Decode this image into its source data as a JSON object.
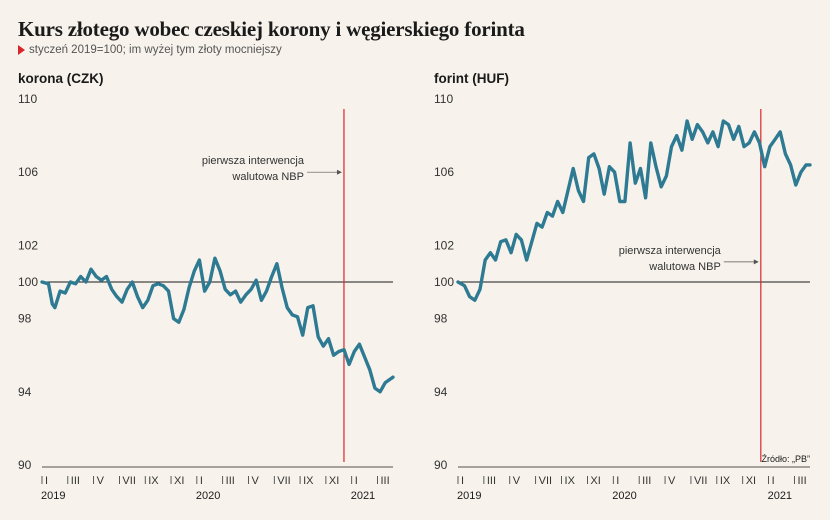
{
  "title": "Kurs złotego wobec czeskiej korony i węgierskiego forinta",
  "subtitle": "styczeń 2019=100; im wyżej tym złoty mocniejszy",
  "source": "Źródło: „PB”",
  "colors": {
    "series": "#2e7a93",
    "intervention_line": "#d9262b",
    "baseline": "#1a1a1a",
    "background": "#f7f3ec"
  },
  "chart_data": [
    {
      "type": "line",
      "title": "korona (CZK)",
      "ylim": [
        90,
        110
      ],
      "yticks": [
        90,
        94,
        98,
        100,
        102,
        106,
        110
      ],
      "baseline": 100,
      "x_range": [
        0,
        27.2
      ],
      "x_unit": "months since January 2019",
      "month_ticks": [
        "I",
        "III",
        "V",
        "VII",
        "IX",
        "XI",
        "I",
        "III",
        "V",
        "VII",
        "IX",
        "XI",
        "I",
        "III"
      ],
      "years": [
        "2019",
        "2020",
        "2021"
      ],
      "intervention": {
        "x": 23.4,
        "label_line1": "pierwsza interwencja",
        "label_line2": "walutowa NBP"
      },
      "series": [
        {
          "x": [
            0,
            0.5,
            0.8,
            1.0,
            1.4,
            1.8,
            2.2,
            2.6,
            3.0,
            3.4,
            3.8,
            4.2,
            4.6,
            5.0,
            5.4,
            5.8,
            6.2,
            6.6,
            7.0,
            7.4,
            7.8,
            8.2,
            8.6,
            9.0,
            9.4,
            9.8,
            10.2,
            10.6,
            11.0,
            11.4,
            11.8,
            12.2,
            12.6,
            13.0,
            13.4,
            13.8,
            14.2,
            14.6,
            15.0,
            15.4,
            15.8,
            16.2,
            16.6,
            17.0,
            17.4,
            17.8,
            18.2,
            18.6,
            19.0,
            19.4,
            19.8,
            20.2,
            20.6,
            21.0,
            21.4,
            21.8,
            22.2,
            22.6,
            23.0,
            23.4,
            23.8,
            24.2,
            24.6,
            25.0,
            25.4,
            25.8,
            26.2,
            26.6,
            27.0,
            27.2
          ],
          "y": [
            100.0,
            99.9,
            98.8,
            98.6,
            99.5,
            99.4,
            100.0,
            99.9,
            100.3,
            100.0,
            100.7,
            100.3,
            100.1,
            100.3,
            99.6,
            99.2,
            98.9,
            99.6,
            100.0,
            99.2,
            98.6,
            99.0,
            99.8,
            99.9,
            99.8,
            99.5,
            98.0,
            97.8,
            98.5,
            99.7,
            100.6,
            101.2,
            99.5,
            100.0,
            101.3,
            100.6,
            99.6,
            99.3,
            99.5,
            98.9,
            99.3,
            99.6,
            100.1,
            99.0,
            99.5,
            100.3,
            101.0,
            99.7,
            98.6,
            98.2,
            98.1,
            97.1,
            98.6,
            98.7,
            97.0,
            96.5,
            96.9,
            96.0,
            96.2,
            96.3,
            95.5,
            96.2,
            96.6,
            95.9,
            95.2,
            94.2,
            94.0,
            94.5,
            94.7,
            94.8
          ]
        }
      ]
    },
    {
      "type": "line",
      "title": "forint (HUF)",
      "ylim": [
        90,
        110
      ],
      "yticks": [
        90,
        94,
        98,
        100,
        102,
        106,
        110
      ],
      "baseline": 100,
      "x_range": [
        0,
        27.2
      ],
      "x_unit": "months since January 2019",
      "month_ticks": [
        "I",
        "III",
        "V",
        "VII",
        "IX",
        "XI",
        "I",
        "III",
        "V",
        "VII",
        "IX",
        "XI",
        "I",
        "III"
      ],
      "years": [
        "2019",
        "2020",
        "2021"
      ],
      "intervention": {
        "x": 23.4,
        "label_line1": "pierwsza interwencja",
        "label_line2": "walutowa NBP"
      },
      "series": [
        {
          "x": [
            0,
            0.5,
            0.9,
            1.3,
            1.7,
            2.1,
            2.5,
            2.9,
            3.3,
            3.7,
            4.1,
            4.5,
            4.9,
            5.3,
            5.7,
            6.1,
            6.5,
            6.9,
            7.3,
            7.7,
            8.1,
            8.5,
            8.9,
            9.3,
            9.7,
            10.1,
            10.5,
            10.9,
            11.3,
            11.7,
            12.1,
            12.5,
            12.9,
            13.3,
            13.7,
            14.1,
            14.5,
            14.9,
            15.3,
            15.7,
            16.1,
            16.5,
            16.9,
            17.3,
            17.7,
            18.1,
            18.5,
            18.9,
            19.3,
            19.7,
            20.1,
            20.5,
            20.9,
            21.3,
            21.7,
            22.1,
            22.5,
            22.9,
            23.3,
            23.7,
            24.1,
            24.5,
            24.9,
            25.3,
            25.7,
            26.1,
            26.5,
            26.9,
            27.2
          ],
          "y": [
            100.0,
            99.8,
            99.2,
            99.0,
            99.6,
            101.2,
            101.6,
            101.2,
            102.2,
            102.3,
            101.6,
            102.6,
            102.3,
            101.2,
            102.2,
            103.2,
            103.0,
            103.8,
            103.6,
            104.4,
            103.8,
            105.0,
            106.2,
            105.0,
            104.4,
            106.8,
            107.0,
            106.2,
            104.8,
            106.3,
            106.0,
            104.4,
            104.4,
            107.6,
            105.4,
            106.2,
            104.6,
            107.6,
            106.3,
            105.2,
            105.8,
            107.4,
            108.0,
            107.2,
            108.8,
            107.8,
            108.6,
            108.2,
            107.6,
            108.2,
            107.4,
            108.8,
            108.6,
            107.8,
            108.5,
            107.4,
            107.6,
            108.2,
            107.6,
            106.3,
            107.4,
            107.8,
            108.2,
            107.0,
            106.4,
            105.3,
            106.0,
            106.4,
            106.4
          ]
        }
      ]
    }
  ]
}
